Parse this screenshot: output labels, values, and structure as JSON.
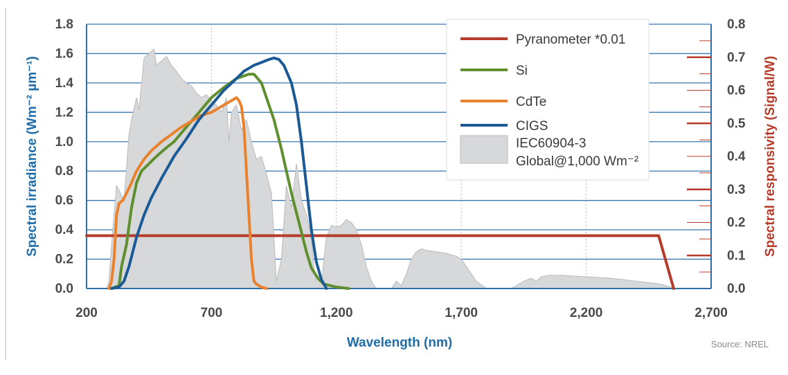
{
  "chart_data": {
    "type": "line",
    "xlabel": "Wavelength (nm)",
    "ylabel": "Spectral irradiance (Wm⁻² µm⁻¹)",
    "y2label": "Spectral responsivity (Signal/W)",
    "xlim": [
      200,
      2700
    ],
    "ylim": [
      0,
      1.8
    ],
    "y2lim": [
      0,
      0.8
    ],
    "x_ticks": [
      "200",
      "700",
      "1,200",
      "1,700",
      "2,200",
      "2,700"
    ],
    "x_tick_values": [
      200,
      700,
      1200,
      1700,
      2200,
      2700
    ],
    "y_ticks": [
      "0.0",
      "0.2",
      "0.4",
      "0.6",
      "0.8",
      "1.0",
      "1.2",
      "1.4",
      "1.6",
      "1.8"
    ],
    "y_tick_values": [
      0,
      0.2,
      0.4,
      0.6,
      0.8,
      1.0,
      1.2,
      1.4,
      1.6,
      1.8
    ],
    "y2_ticks": [
      "0.0",
      "0.1",
      "0.2",
      "0.3",
      "0.4",
      "0.5",
      "0.6",
      "0.7",
      "0.8"
    ],
    "y2_tick_values": [
      0,
      0.1,
      0.2,
      0.3,
      0.4,
      0.5,
      0.6,
      0.7,
      0.8
    ],
    "legend_position": "top-right",
    "source": "Source: NREL",
    "area_series": {
      "name_line1": "IEC60904-3",
      "name_line2": "Global@1,000 Wm⁻²",
      "color": "#d7d8da",
      "edge": "#b8babd",
      "x": [
        280,
        290,
        300,
        320,
        330,
        350,
        370,
        380,
        400,
        410,
        430,
        450,
        470,
        480,
        500,
        520,
        540,
        560,
        580,
        600,
        620,
        640,
        660,
        680,
        700,
        720,
        740,
        760,
        770,
        780,
        800,
        820,
        840,
        860,
        880,
        900,
        920,
        940,
        960,
        980,
        1000,
        1020,
        1040,
        1060,
        1080,
        1100,
        1110,
        1120,
        1140,
        1150,
        1160,
        1180,
        1200,
        1220,
        1240,
        1260,
        1280,
        1300,
        1320,
        1340,
        1360,
        1380,
        1400,
        1420,
        1440,
        1460,
        1480,
        1500,
        1520,
        1540,
        1560,
        1600,
        1640,
        1680,
        1700,
        1720,
        1760,
        1800,
        1820,
        1840,
        1860,
        1880,
        1900,
        1950,
        1980,
        2000,
        2020,
        2050,
        2100,
        2200,
        2300,
        2400,
        2500,
        2540,
        2550
      ],
      "y": [
        0,
        0.05,
        0.3,
        0.7,
        0.67,
        0.6,
        1.05,
        1.15,
        1.3,
        1.22,
        1.57,
        1.6,
        1.63,
        1.52,
        1.55,
        1.58,
        1.52,
        1.48,
        1.43,
        1.4,
        1.38,
        1.33,
        1.3,
        1.32,
        1.28,
        1.25,
        1.2,
        1.3,
        1.0,
        1.2,
        1.25,
        1.08,
        1.15,
        1.0,
        0.88,
        0.9,
        0.78,
        0.65,
        0.05,
        0.2,
        0.7,
        0.55,
        0.85,
        0.6,
        0.5,
        0.35,
        0.15,
        0.05,
        0.02,
        0.2,
        0.35,
        0.43,
        0.42,
        0.43,
        0.47,
        0.45,
        0.4,
        0.3,
        0.15,
        0.05,
        0,
        0,
        0,
        0,
        0.05,
        0.02,
        0.1,
        0.2,
        0.25,
        0.27,
        0.26,
        0.25,
        0.24,
        0.22,
        0.2,
        0.15,
        0.05,
        0,
        0,
        0,
        0,
        0,
        0,
        0.05,
        0.07,
        0.05,
        0.08,
        0.09,
        0.09,
        0.08,
        0.07,
        0.05,
        0.03,
        0.01,
        0
      ]
    },
    "series": [
      {
        "name": "Pyranometer *0.01",
        "color": "#b53c2a",
        "x": [
          200,
          2490,
          2550
        ],
        "y": [
          0.36,
          0.36,
          0
        ]
      },
      {
        "name": "Si",
        "color": "#5f8f2e",
        "x": [
          300,
          330,
          340,
          360,
          380,
          400,
          420,
          450,
          480,
          500,
          520,
          550,
          580,
          600,
          650,
          700,
          750,
          800,
          850,
          870,
          900,
          920,
          950,
          980,
          1000,
          1020,
          1050,
          1080,
          1100,
          1130,
          1150,
          1200,
          1250
        ],
        "y": [
          0,
          0.02,
          0.15,
          0.3,
          0.55,
          0.72,
          0.8,
          0.85,
          0.9,
          0.93,
          0.96,
          1.0,
          1.06,
          1.1,
          1.2,
          1.3,
          1.37,
          1.43,
          1.46,
          1.46,
          1.4,
          1.3,
          1.15,
          0.95,
          0.8,
          0.65,
          0.45,
          0.25,
          0.14,
          0.06,
          0.03,
          0.01,
          0
        ]
      },
      {
        "name": "CdTe",
        "color": "#e9822f",
        "x": [
          290,
          300,
          310,
          320,
          330,
          345,
          360,
          380,
          400,
          430,
          460,
          500,
          540,
          580,
          620,
          660,
          700,
          740,
          780,
          800,
          810,
          820,
          830,
          840,
          850,
          860,
          870,
          880,
          890,
          900,
          920
        ],
        "y": [
          0,
          0.05,
          0.2,
          0.5,
          0.58,
          0.6,
          0.65,
          0.72,
          0.8,
          0.88,
          0.94,
          1.0,
          1.05,
          1.1,
          1.14,
          1.18,
          1.2,
          1.24,
          1.28,
          1.3,
          1.28,
          1.24,
          1.1,
          0.8,
          0.5,
          0.2,
          0.05,
          0.03,
          0.02,
          0.01,
          0
        ]
      },
      {
        "name": "CIGS",
        "color": "#1c5a96",
        "x": [
          300,
          330,
          350,
          370,
          400,
          430,
          460,
          500,
          550,
          600,
          650,
          700,
          750,
          800,
          830,
          850,
          870,
          900,
          930,
          950,
          970,
          990,
          1000,
          1020,
          1040,
          1060,
          1080,
          1100,
          1120,
          1140,
          1160
        ],
        "y": [
          0,
          0.01,
          0.05,
          0.15,
          0.35,
          0.5,
          0.62,
          0.75,
          0.9,
          1.02,
          1.15,
          1.25,
          1.35,
          1.43,
          1.48,
          1.5,
          1.52,
          1.54,
          1.56,
          1.57,
          1.56,
          1.52,
          1.48,
          1.4,
          1.25,
          1.0,
          0.7,
          0.4,
          0.18,
          0.06,
          0
        ]
      }
    ]
  }
}
